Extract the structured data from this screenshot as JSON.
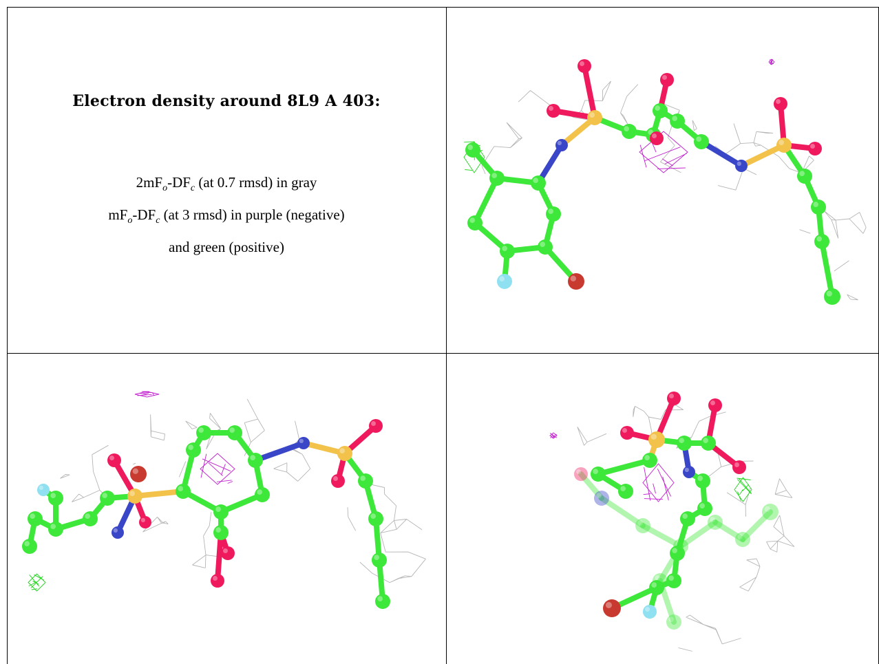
{
  "caption": {
    "title": "Electron density around 8L9 A 403:",
    "line1": {
      "a": "2mF",
      "b": "o",
      "c": "-DF",
      "d": "c",
      "e": " (at 0.7 rmsd) in gray"
    },
    "line2": {
      "a": "mF",
      "b": "o",
      "c": "-DF",
      "d": "c",
      "e": " (at 3 rmsd) in purple (negative)"
    },
    "line3": "and green (positive)"
  },
  "colors": {
    "carbon": "#3ee83a",
    "oxygen": "#ef1a5e",
    "sulfur": "#f2c24a",
    "nitrogen": "#3a46c8",
    "fluorine": "#8fe0f0",
    "bromine": "#c8392f",
    "density_2fofc": "#a8a8a8",
    "density_negative": "#c11fcf",
    "density_positive": "#1fd61a"
  },
  "panels": [
    {
      "name": "view-top-right"
    },
    {
      "name": "view-bottom-left"
    },
    {
      "name": "view-bottom-right"
    }
  ]
}
